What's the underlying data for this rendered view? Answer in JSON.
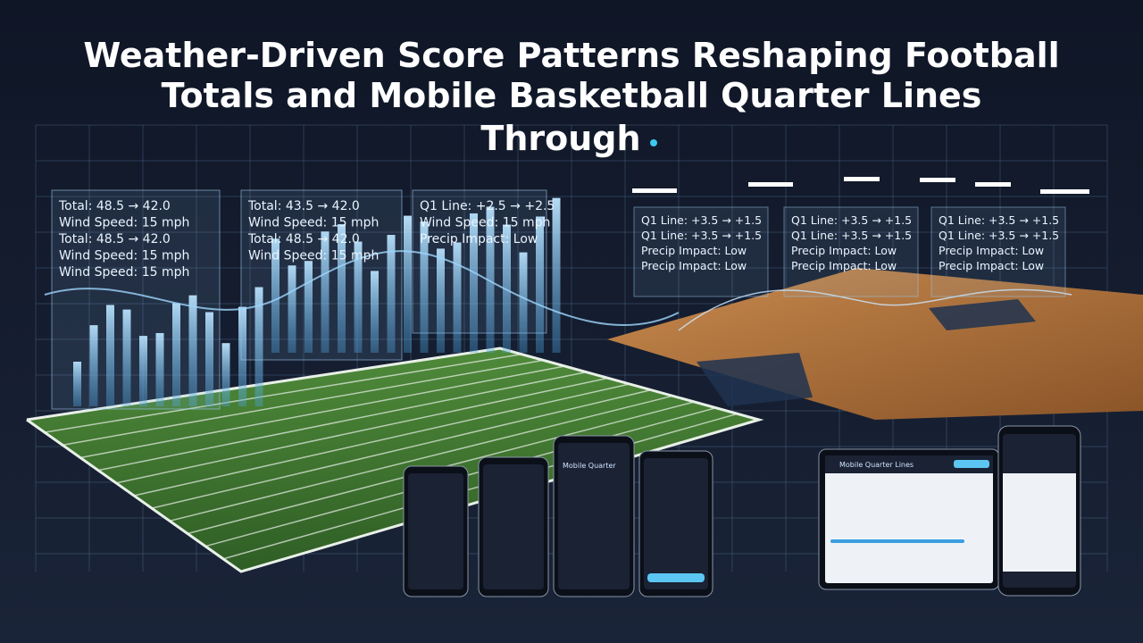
{
  "header": {
    "title_lines": [
      "Weather-Driven Score Patterns Reshaping Football",
      "Totals and Mobile Basketball Quarter Lines",
      "Through"
    ]
  },
  "football_panels": [
    {
      "lines": [
        "Total: 48.5 → 42.0",
        "Wind Speed: 15 mph",
        "Total: 48.5 → 42.0",
        "Wind Speed: 15 mph",
        "Wind Speed: 15 mph"
      ]
    },
    {
      "lines": [
        "Total: 43.5 → 42.0",
        "Wind Speed: 15 mph",
        "Total: 48.5 → 42.0",
        "Wind Speed: 15 mph"
      ]
    },
    {
      "lines": [
        "Q1 Line: +2.5 → +2.5",
        "Wind Speed: 15 mph",
        "Precip Impact: Low"
      ]
    }
  ],
  "court_panels": [
    {
      "lines": [
        "Q1 Line: +3.5 → +1.5",
        "Q1 Line: +3.5 → +1.5",
        "Precip Impact: Low",
        "Precip Impact: Low"
      ]
    },
    {
      "lines": [
        "Q1 Line: +3.5 → +1.5",
        "Q1 Line: +3.5 → +1.5",
        "Precip Impact: Low",
        "Precip Impact: Low"
      ]
    },
    {
      "lines": [
        "Q1 Line: +3.5 → +1.5",
        "Q1 Line: +3.5 → +1.5",
        "Precip Impact: Low",
        "Precip Impact: Low"
      ]
    }
  ],
  "devices": {
    "phone_header": "Mobile Quarter",
    "tablet_header": "Mobile Quarter Lines"
  }
}
